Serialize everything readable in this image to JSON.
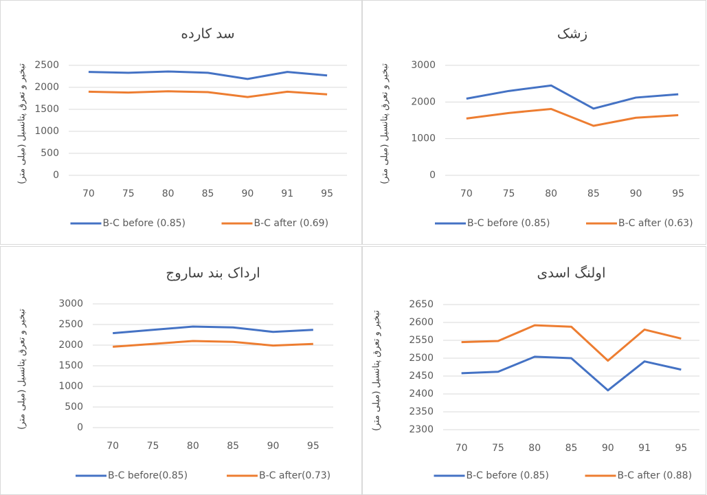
{
  "chart_data": [
    {
      "type": "line",
      "title": "سد کارده",
      "y_label": "تبخیر و تعرق پتانسیل (میلی متر)",
      "categories": [
        "70",
        "75",
        "80",
        "85",
        "90",
        "91",
        "95"
      ],
      "series": [
        {
          "name": "B-C before (0.85)",
          "color": "#4472c4",
          "values": [
            2350,
            2330,
            2360,
            2330,
            2190,
            2350,
            2270
          ]
        },
        {
          "name": "B-C after (0.69)",
          "color": "#ed7d31",
          "values": [
            1900,
            1880,
            1910,
            1890,
            1780,
            1900,
            1840
          ]
        }
      ],
      "ylim": [
        0,
        2500
      ],
      "yticks": [
        0,
        500,
        1000,
        1500,
        2000,
        2500
      ],
      "grid": true
    },
    {
      "type": "line",
      "title": "زشک",
      "y_label": "تبخیر و تعرق پتانسیل (میلی متر)",
      "categories": [
        "70",
        "75",
        "80",
        "85",
        "90",
        "95"
      ],
      "series": [
        {
          "name": "B-C before (0.85)",
          "color": "#4472c4",
          "values": [
            2090,
            2300,
            2450,
            1820,
            2120,
            2210
          ]
        },
        {
          "name": "B-C after (0.63)",
          "color": "#ed7d31",
          "values": [
            1550,
            1700,
            1810,
            1350,
            1570,
            1640
          ]
        }
      ],
      "ylim": [
        0,
        3000
      ],
      "yticks": [
        0,
        1000,
        2000,
        3000
      ],
      "grid": true
    },
    {
      "type": "line",
      "title": "ارداک بند ساروج",
      "y_label": "تبخیر و تعرق پتانسیل (میلی متر)",
      "categories": [
        "70",
        "75",
        "80",
        "85",
        "90",
        "95"
      ],
      "series": [
        {
          "name": "B-C before(0.85)",
          "color": "#4472c4",
          "values": [
            2290,
            2370,
            2450,
            2430,
            2320,
            2370
          ]
        },
        {
          "name": "B-C after(0.73)",
          "color": "#ed7d31",
          "values": [
            1960,
            2030,
            2100,
            2080,
            1990,
            2030
          ]
        }
      ],
      "ylim": [
        0,
        3000
      ],
      "yticks": [
        0,
        500,
        1000,
        1500,
        2000,
        2500,
        3000
      ],
      "grid": true
    },
    {
      "type": "line",
      "title": "اولنگ اسدی",
      "y_label": "تبخیر و تعرق پتانسیل (میلی متر)",
      "categories": [
        "70",
        "75",
        "80",
        "85",
        "90",
        "91",
        "95"
      ],
      "series": [
        {
          "name": "B-C before (0.85)",
          "color": "#4472c4",
          "values": [
            2458,
            2462,
            2504,
            2500,
            2410,
            2491,
            2468
          ]
        },
        {
          "name": "B-C after (0.88)",
          "color": "#ed7d31",
          "values": [
            2545,
            2548,
            2592,
            2588,
            2493,
            2580,
            2555
          ]
        }
      ],
      "ylim": [
        2300,
        2650
      ],
      "yticks": [
        2300,
        2350,
        2400,
        2450,
        2500,
        2550,
        2600,
        2650
      ],
      "grid": true
    }
  ]
}
